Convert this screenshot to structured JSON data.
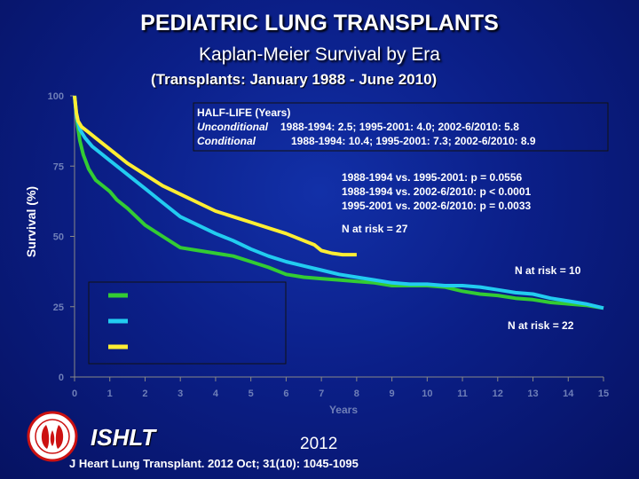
{
  "header": {
    "title": "PEDIATRIC LUNG TRANSPLANTS",
    "subtitle": "Kaplan-Meier Survival by Era",
    "subtitle2": "(Transplants: January 1988 - June 2010)"
  },
  "chart_data": {
    "type": "line",
    "xlabel": "Years",
    "ylabel": "Survival (%)",
    "xlim": [
      0,
      15
    ],
    "ylim": [
      0,
      100
    ],
    "xticks": [
      0,
      1,
      2,
      3,
      4,
      5,
      6,
      7,
      8,
      9,
      10,
      11,
      12,
      13,
      14,
      15
    ],
    "yticks": [
      0,
      25,
      50,
      75,
      100
    ],
    "grid": false,
    "colors": {
      "green": "#33cc33",
      "cyan": "#22ccf0",
      "yellow": "#ffee33"
    },
    "series": [
      {
        "color": "#33cc33",
        "x": [
          0,
          0.08,
          0.15,
          0.25,
          0.4,
          0.6,
          0.8,
          1.0,
          1.2,
          1.5,
          2.0,
          2.5,
          3.0,
          3.5,
          4.0,
          4.5,
          5.0,
          5.5,
          6.0,
          6.5,
          7.0,
          7.5,
          8.0,
          8.5,
          9.0,
          9.5,
          10.0,
          10.5,
          11.0,
          11.5,
          12.0,
          12.5,
          13.0,
          13.5,
          14.0,
          14.5,
          15.0
        ],
        "y": [
          100,
          90,
          84,
          79,
          74,
          70,
          68,
          66,
          63,
          60,
          54,
          50,
          46,
          45,
          44,
          43,
          41,
          39,
          36.5,
          35.5,
          35,
          34.5,
          34,
          33.5,
          32.5,
          32.5,
          32.5,
          32,
          30.5,
          29.5,
          29,
          28,
          27.5,
          26.5,
          26,
          25.5,
          24.5
        ]
      },
      {
        "color": "#22ccf0",
        "x": [
          0,
          0.05,
          0.15,
          0.3,
          0.5,
          0.8,
          1.0,
          1.3,
          1.6,
          2.0,
          2.5,
          3.0,
          3.5,
          4.0,
          4.5,
          5.0,
          5.5,
          6.0,
          6.5,
          7.0,
          7.5,
          8.0,
          8.5,
          9.0,
          9.5,
          10.0,
          10.5,
          11.0,
          11.5,
          12.0,
          12.5,
          13.0,
          13.5,
          14.0,
          14.5,
          15.0
        ],
        "y": [
          100,
          93,
          88,
          85,
          82,
          79,
          77,
          74,
          71,
          67,
          62,
          57,
          54,
          51,
          48.5,
          45.5,
          43,
          41,
          39.5,
          38,
          36.5,
          35.5,
          34.5,
          33.5,
          33,
          33,
          32.5,
          32.5,
          32,
          31,
          30,
          29.5,
          28,
          27,
          26,
          24.5
        ]
      },
      {
        "color": "#ffee33",
        "x": [
          0,
          0.05,
          0.1,
          0.2,
          0.4,
          0.6,
          0.8,
          1.0,
          1.2,
          1.5,
          2.0,
          2.5,
          3.0,
          3.5,
          4.0,
          4.5,
          5.0,
          5.5,
          6.0,
          6.5,
          6.8,
          7.0,
          7.3,
          7.6,
          7.9,
          8.0
        ],
        "y": [
          100,
          94,
          91,
          89,
          87,
          85,
          83,
          81,
          79,
          76,
          72,
          68,
          65,
          62,
          59,
          57,
          55,
          53,
          51,
          48.5,
          47,
          45,
          44,
          43.5,
          43.5,
          43.5
        ]
      }
    ],
    "annotations": {
      "halflife_title": "HALF-LIFE (Years)",
      "halflife_unconditional_label": "Unconditional",
      "halflife_unconditional_values": "1988-1994: 2.5; 1995-2001: 4.0; 2002-6/2010: 5.8",
      "halflife_conditional_label": "Conditional",
      "halflife_conditional_values": "1988-1994: 10.4; 1995-2001: 7.3; 2002-6/2010: 8.9",
      "pvalue_1": "1988-1994 vs. 1995-2001: p =   0.0556",
      "pvalue_2": "1988-1994 vs. 2002-6/2010: p < 0.0001",
      "pvalue_3": "1995-2001 vs. 2002-6/2010: p = 0.0033",
      "risk_yellow": "N at risk = 27",
      "risk_cyan": "N at risk =  10",
      "risk_green": "N at risk = 22"
    },
    "legend": {
      "position": "lower-left",
      "colors": [
        "#33cc33",
        "#22ccf0",
        "#ffee33"
      ]
    }
  },
  "footer": {
    "logo_text": "ISHLT",
    "year": "2012",
    "citation": "J Heart Lung Transplant. 2012 Oct; 31(10): 1045-1095"
  }
}
